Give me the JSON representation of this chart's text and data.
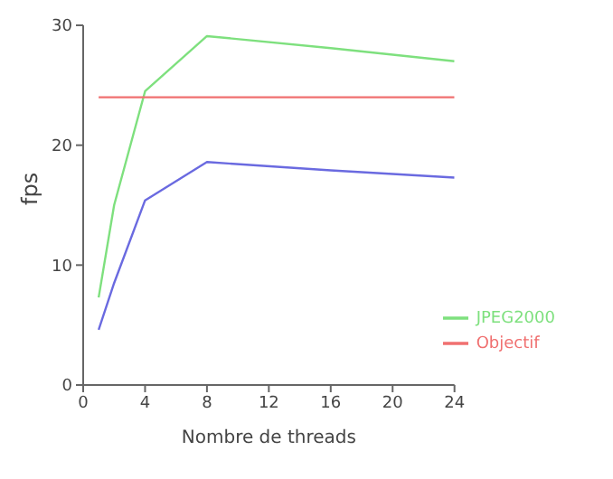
{
  "chart_data": {
    "type": "line",
    "xlabel": "Nombre de threads",
    "ylabel": "fps",
    "series": [
      {
        "name": "JPEG2000",
        "color": "#7ee07e",
        "x": [
          1,
          2,
          4,
          8,
          16,
          24
        ],
        "values": [
          7.3,
          15,
          24.5,
          29.1,
          28.1,
          27
        ]
      },
      {
        "color": "#6a6ae0",
        "x": [
          1,
          2,
          4,
          8,
          16,
          24
        ],
        "values": [
          4.6,
          8.5,
          15.4,
          18.6,
          17.9,
          17.3
        ]
      },
      {
        "name": "Objectif",
        "color": "#f07070",
        "x": [
          1,
          24
        ],
        "values": [
          24,
          24
        ]
      }
    ],
    "xlim": [
      0,
      24
    ],
    "xticks": [
      0,
      4,
      8,
      12,
      16,
      20,
      24
    ],
    "ylim": [
      0,
      30
    ],
    "yticks": [
      0,
      10,
      20,
      30
    ],
    "grid": false,
    "legend": "bottom right",
    "marker": "none",
    "line_style": "solid"
  }
}
